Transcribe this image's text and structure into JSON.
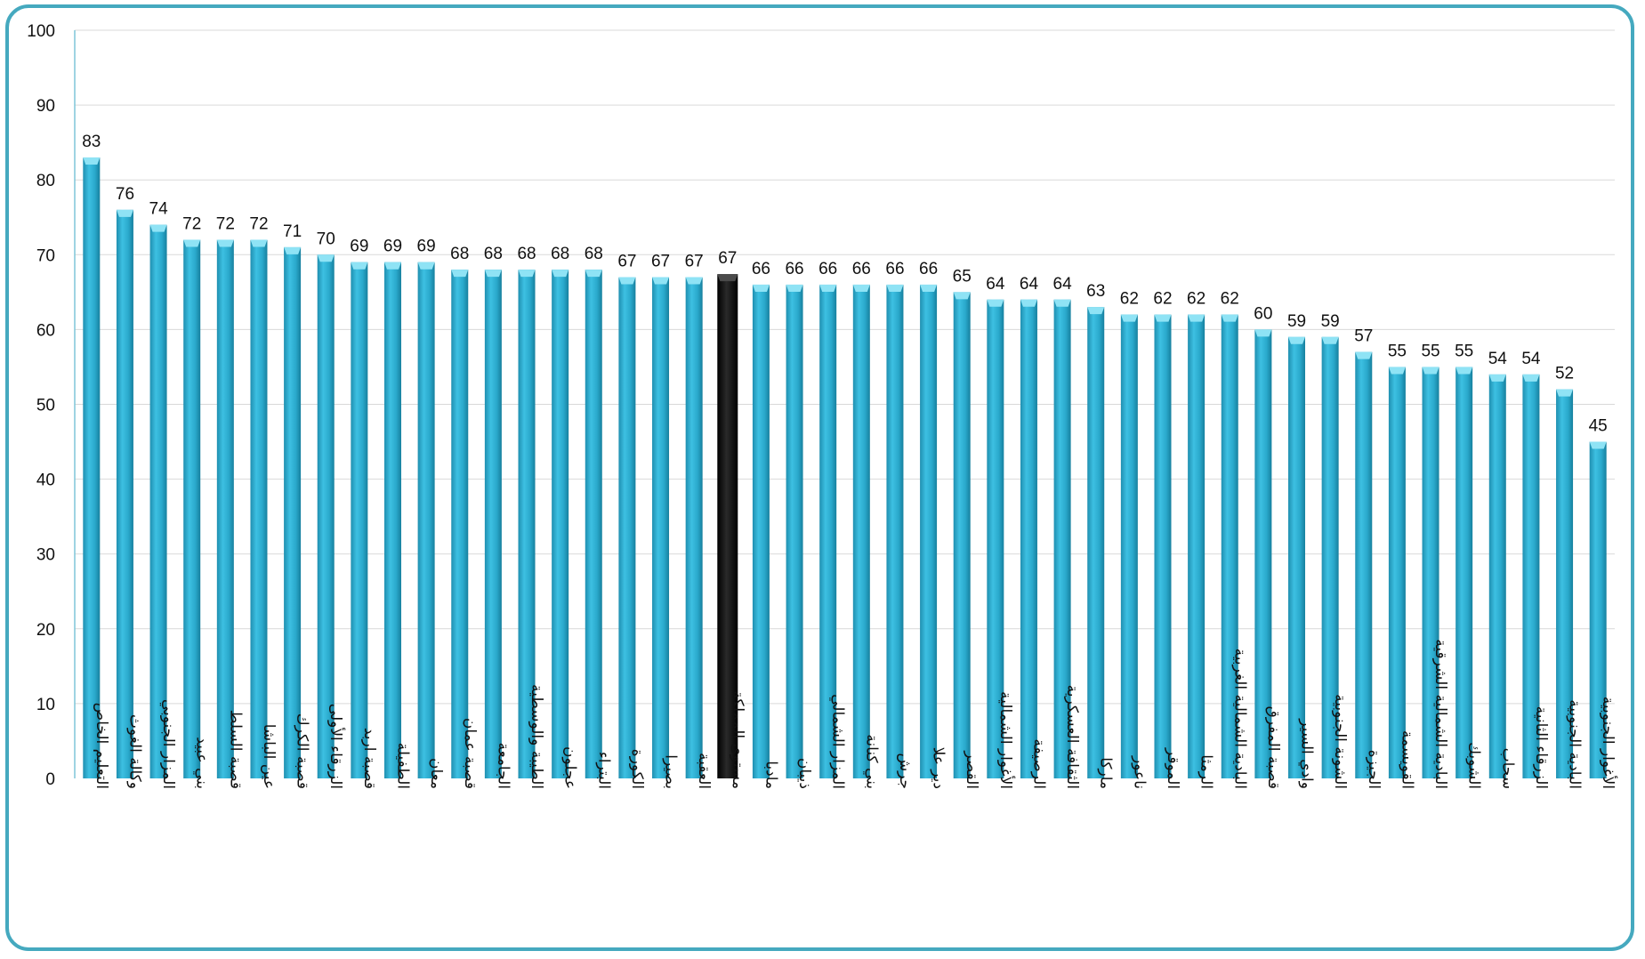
{
  "chart_data": {
    "type": "bar",
    "title": "",
    "xlabel": "",
    "ylabel": "",
    "ylim": [
      0,
      100
    ],
    "yticks": [
      0,
      10,
      20,
      30,
      40,
      50,
      60,
      70,
      80,
      90,
      100
    ],
    "grid": true,
    "legend": "none",
    "bar_color": "#2aa9cc",
    "highlight_color": "#111111",
    "highlight_category": "مستوى المملكة",
    "categories": [
      "التعليم الخاص",
      "وكالة الغوث",
      "المزار الجنوبي",
      "بني عبيد",
      "قصبة السلط",
      "عين الباشا",
      "قصبة الكرك",
      "الزرقاء الأولى",
      "قصبة اربد",
      "الطفيلة",
      "معان",
      "قصبة عمان",
      "الجامعة",
      "الطيبة والوسطية",
      "عجلون",
      "البتراء",
      "الكورة",
      "بصيرا",
      "العقبة",
      "مستوى المملكة",
      "مادبا",
      "ذيبان",
      "المزار الشمالي",
      "بني كنانة",
      "جرش",
      "دير علا",
      "القصر",
      "الأغوار الشمالية",
      "الرصيفة",
      "الثقافة العسكرية",
      "ماركا",
      "ناعور",
      "الموقر",
      "الرمثا",
      "البادية الشمالية الغربية",
      "قصبة المفرق",
      "وادي السير",
      "الشونة الجنوبية",
      "الجيزة",
      "القويسمة",
      "البادية الشمالية الشرقية",
      "الشوبك",
      "سحاب",
      "الزرقاء الثانية",
      "البادية الجنوبية",
      "الأغوار الجنوبية"
    ],
    "values": [
      83,
      76,
      74,
      72,
      72,
      72,
      71,
      70,
      69,
      69,
      69,
      68,
      68,
      68,
      68,
      68,
      67,
      67,
      67,
      67.4,
      66,
      66,
      66,
      66,
      66,
      66,
      65,
      64,
      64,
      64,
      63,
      62,
      62,
      62,
      62,
      60,
      59,
      59,
      57,
      55,
      55,
      55,
      54,
      54,
      52,
      45
    ],
    "data_labels": [
      "83",
      "76",
      "74",
      "72",
      "72",
      "72",
      "71",
      "70",
      "69",
      "69",
      "69",
      "68",
      "68",
      "68",
      "68",
      "68",
      "67",
      "67",
      "67",
      "67",
      "66",
      "66",
      "66",
      "66",
      "66",
      "66",
      "65",
      "64",
      "64",
      "64",
      "63",
      "62",
      "62",
      "62",
      "62",
      "60",
      "59",
      "59",
      "57",
      "55",
      "55",
      "55",
      "54",
      "54",
      "52",
      "45"
    ]
  }
}
